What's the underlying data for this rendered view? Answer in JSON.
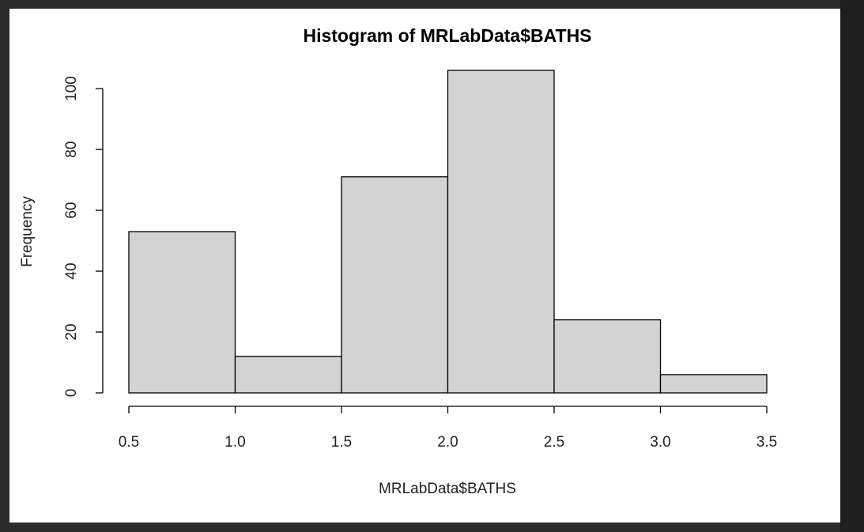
{
  "colors": {
    "background": "#2b2b2b",
    "panel": "#ffffff",
    "bar_fill": "#d3d3d3",
    "bar_stroke": "#000000"
  },
  "chart_data": {
    "type": "bar",
    "title": "Histogram of MRLabData$BATHS",
    "xlabel": "MRLabData$BATHS",
    "ylabel": "Frequency",
    "bins": [
      {
        "from": 0.5,
        "to": 1.0,
        "count": 53
      },
      {
        "from": 1.0,
        "to": 1.5,
        "count": 12
      },
      {
        "from": 1.5,
        "to": 2.0,
        "count": 71
      },
      {
        "from": 2.0,
        "to": 2.5,
        "count": 106
      },
      {
        "from": 2.5,
        "to": 3.0,
        "count": 24
      },
      {
        "from": 3.0,
        "to": 3.5,
        "count": 6
      }
    ],
    "xlim": [
      0.5,
      3.5
    ],
    "ylim": [
      0,
      106
    ],
    "x_ticks": [
      "0.5",
      "1.0",
      "1.5",
      "2.0",
      "2.5",
      "3.0",
      "3.5"
    ],
    "y_ticks": [
      "0",
      "20",
      "40",
      "60",
      "80",
      "100"
    ],
    "grid": false,
    "legend": "none"
  }
}
